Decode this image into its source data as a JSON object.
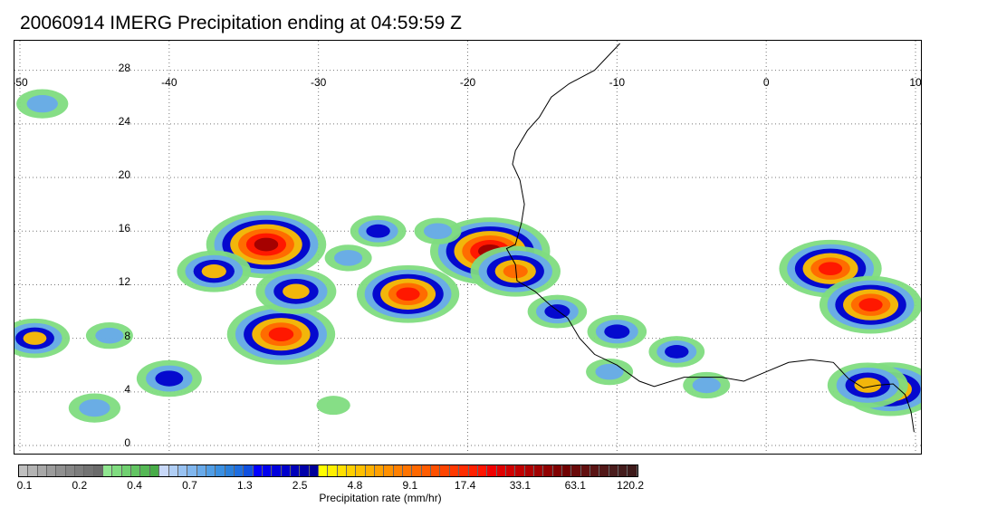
{
  "title": "20060914 IMERG Precipitation ending at 04:59:59 Z",
  "map": {
    "lon_range": [
      -50,
      10
    ],
    "lat_range": [
      -1,
      29
    ],
    "lon_ticks": [
      "-50",
      "-40",
      "-30",
      "-20",
      "-10",
      "0",
      "10"
    ],
    "lat_ticks": [
      "28",
      "24",
      "20",
      "16",
      "12",
      "8",
      "4",
      "0"
    ],
    "gridlines": "dotted",
    "coastline_color": "#000000"
  },
  "colorbar": {
    "title": "Precipitation rate (mm/hr)",
    "labels": [
      "0.1",
      "0.2",
      "0.4",
      "0.7",
      "1.3",
      "2.5",
      "4.8",
      "9.1",
      "17.4",
      "33.1",
      "63.1",
      "120.2"
    ],
    "colors": [
      "#bfbfbf",
      "#b3b3b3",
      "#a8a8a8",
      "#9c9c9c",
      "#909090",
      "#868686",
      "#7d7d7d",
      "#737373",
      "#6b6b6b",
      "#90e690",
      "#80dc80",
      "#70d070",
      "#62c462",
      "#55b855",
      "#48ac48",
      "#c8d8f8",
      "#b0cef5",
      "#98c2f2",
      "#80b6ee",
      "#68aaea",
      "#509ee6",
      "#3a90e2",
      "#2a80dc",
      "#1e6ee0",
      "#1050e0",
      "#0000ff",
      "#0000ee",
      "#0000dd",
      "#0000cc",
      "#0000bb",
      "#0000aa",
      "#00009a",
      "#ffff00",
      "#fff000",
      "#ffe000",
      "#ffd000",
      "#ffc000",
      "#ffb000",
      "#ffa000",
      "#ff9000",
      "#ff8000",
      "#ff7400",
      "#ff6800",
      "#ff5c00",
      "#ff5000",
      "#ff4400",
      "#ff3800",
      "#ff2c00",
      "#ff2000",
      "#ff1400",
      "#f00000",
      "#e00000",
      "#d00000",
      "#c00000",
      "#b00000",
      "#a00000",
      "#900000",
      "#800000",
      "#700000",
      "#6a0a0a",
      "#621010",
      "#5a1414",
      "#521818",
      "#4a1c1c",
      "#441c1c",
      "#3e1a1a"
    ]
  },
  "precipitation_cells": [
    {
      "lon": -33.5,
      "lat": 15.0,
      "rate": 40
    },
    {
      "lon": -37.0,
      "lat": 13.0,
      "rate": 6
    },
    {
      "lon": -32.5,
      "lat": 8.3,
      "rate": 25
    },
    {
      "lon": -31.5,
      "lat": 11.5,
      "rate": 8
    },
    {
      "lon": -28.0,
      "lat": 14.0,
      "rate": 1.5
    },
    {
      "lon": -24.0,
      "lat": 11.3,
      "rate": 20
    },
    {
      "lon": -18.5,
      "lat": 14.5,
      "rate": 40
    },
    {
      "lon": -16.8,
      "lat": 13.0,
      "rate": 12
    },
    {
      "lon": -14.0,
      "lat": 10.0,
      "rate": 3
    },
    {
      "lon": -10.0,
      "lat": 8.5,
      "rate": 3
    },
    {
      "lon": -10.5,
      "lat": 5.5,
      "rate": 1.5
    },
    {
      "lon": -4.0,
      "lat": 4.5,
      "rate": 1.5
    },
    {
      "lon": 4.3,
      "lat": 13.2,
      "rate": 20
    },
    {
      "lon": 7.0,
      "lat": 10.5,
      "rate": 20
    },
    {
      "lon": 8.3,
      "lat": 4.2,
      "rate": 15
    },
    {
      "lon": 6.8,
      "lat": 4.5,
      "rate": 8
    },
    {
      "lon": -49.0,
      "lat": 8.0,
      "rate": 5
    },
    {
      "lon": -48.5,
      "lat": 25.5,
      "rate": 2
    },
    {
      "lon": -40.0,
      "lat": 5.0,
      "rate": 4
    },
    {
      "lon": -45.0,
      "lat": 2.8,
      "rate": 2
    },
    {
      "lon": -44.0,
      "lat": 8.2,
      "rate": 1.5
    },
    {
      "lon": -29.0,
      "lat": 3.0,
      "rate": 0.5
    },
    {
      "lon": -22.0,
      "lat": 16.0,
      "rate": 1.5
    },
    {
      "lon": -26.0,
      "lat": 16.0,
      "rate": 2.5
    },
    {
      "lon": -6.0,
      "lat": 7.0,
      "rate": 2.5
    }
  ]
}
